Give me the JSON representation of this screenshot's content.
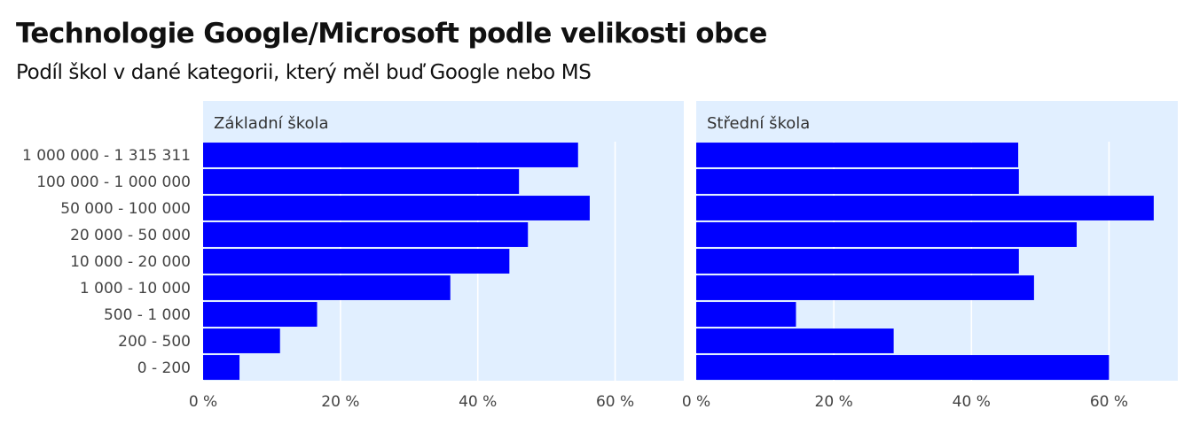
{
  "title": "Technologie Google/Microsoft podle velikosti obce",
  "subtitle": "Podíl škol v dané kategorii, který měl buď Google nebo MS",
  "colors": {
    "bar": "#0000ff",
    "panel": "#e1efff",
    "grid": "#ffffff"
  },
  "chart_data": {
    "type": "bar",
    "orientation": "horizontal",
    "categories": [
      "1 000 000 - 1 315 311",
      "100 000 - 1 000 000",
      "50 000 - 100 000",
      "20 000 - 50 000",
      "10 000 - 20 000",
      "1 000 - 10 000",
      "500 - 1 000",
      "200 - 500",
      "0 - 200"
    ],
    "xticks": [
      "0 %",
      "20 %",
      "40 %",
      "60 %"
    ],
    "xlim": [
      0,
      70
    ],
    "grid": true,
    "facets": [
      {
        "label": "Základní škola",
        "values": [
          54.6,
          46.0,
          56.3,
          47.3,
          44.6,
          36.0,
          16.6,
          11.2,
          5.3
        ]
      },
      {
        "label": "Střední škola",
        "values": [
          46.8,
          46.9,
          66.5,
          55.3,
          46.9,
          49.1,
          14.5,
          28.7,
          60.0
        ]
      }
    ]
  }
}
